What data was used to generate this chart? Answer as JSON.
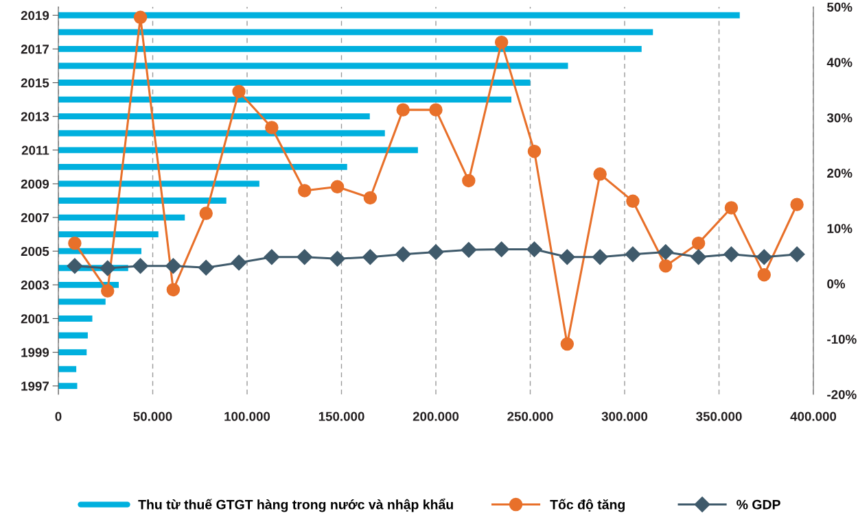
{
  "chart_data": [
    {
      "type": "bar",
      "orientation": "horizontal",
      "categories": [
        "2019",
        null,
        "2017",
        null,
        "2015",
        null,
        "2013",
        null,
        "2011",
        null,
        "2009",
        null,
        "2007",
        null,
        "2005",
        null,
        "2003",
        null,
        "2001",
        null,
        "1999",
        null,
        "1997"
      ],
      "xlim": [
        0,
        400000
      ],
      "xticks": [
        0,
        {
          "value": 50000,
          "label": "50.000"
        },
        {
          "value": 100000,
          "label": "100.000"
        },
        {
          "value": 150000,
          "label": "150.000"
        },
        {
          "value": 200000,
          "label": "200.000"
        },
        {
          "value": 250000,
          "label": "250.000"
        },
        {
          "value": 300000,
          "label": "300.000"
        },
        {
          "value": 350000,
          "label": "350.000"
        },
        {
          "value": 400000,
          "label": "400.000"
        }
      ],
      "grid": "x",
      "legend": "bottom",
      "series": [
        {
          "name": "Thu từ thuế GTGT hàng trong nước và nhập khẩu",
          "color": "#00b0de",
          "values": [
            361000,
            315000,
            309000,
            270000,
            250000,
            240000,
            165000,
            173000,
            190500,
            153000,
            106500,
            89000,
            67000,
            53000,
            44000,
            37000,
            32000,
            25000,
            18000,
            15600,
            15000,
            9500,
            10000
          ]
        }
      ]
    },
    {
      "type": "line",
      "categories": [
        null,
        null,
        null,
        null,
        null,
        null,
        null,
        null,
        null,
        null,
        null,
        null,
        null,
        null,
        null,
        null,
        null,
        null,
        null,
        null,
        null,
        null,
        null
      ],
      "ylim": [
        -20,
        50
      ],
      "yticks": [
        {
          "value": -20,
          "label": "-20%"
        },
        {
          "value": -10,
          "label": "-10%"
        },
        {
          "value": 0,
          "label": "0%"
        },
        {
          "value": 10,
          "label": "10%"
        },
        {
          "value": 20,
          "label": "20%"
        },
        {
          "value": 30,
          "label": "30%"
        },
        {
          "value": 40,
          "label": "40%"
        },
        {
          "value": 50,
          "label": "50%"
        }
      ],
      "tick_labels": "y",
      "legend": "bottom",
      "series": [
        {
          "name": "Tốc độ tăng",
          "marker": "circle",
          "color": "#e8702a",
          "values": [
            7.3,
            -1.3,
            48.1,
            -1.1,
            12.7,
            34.7,
            28.2,
            16.8,
            17.5,
            15.5,
            31.4,
            31.4,
            18.6,
            43.6,
            23.9,
            -10.9,
            19.8,
            14.9,
            3.2,
            7.3,
            13.7,
            1.6,
            14.3
          ]
        },
        {
          "name": "% GDP",
          "marker": "diamond",
          "color": "#3f5a6b",
          "values": [
            3.2,
            2.8,
            3.2,
            3.2,
            2.9,
            3.8,
            4.8,
            4.8,
            4.5,
            4.8,
            5.3,
            5.7,
            6.1,
            6.2,
            6.2,
            4.8,
            4.8,
            5.3,
            5.7,
            4.8,
            5.3,
            4.8,
            5.3
          ]
        }
      ]
    }
  ]
}
